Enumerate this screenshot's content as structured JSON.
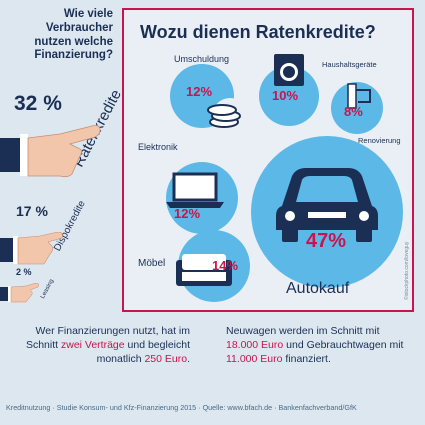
{
  "left": {
    "question": "Wie viele Verbraucher nutzen welche Finanzierung?",
    "rate_pct": "32 %",
    "rate_label": "Ratenkredite",
    "dispo_pct": "17 %",
    "dispo_label": "Dispokredite",
    "leasing_pct": "2 %",
    "leasing_label": "Leasing"
  },
  "panel": {
    "title": "Wozu dienen Ratenkredite?",
    "umschuldung_label": "Umschuldung",
    "umschuldung_pct": "12%",
    "haushalt_label": "Haushaltsgeräte",
    "haushalt_pct": "10%",
    "renovierung_label": "Renovierung",
    "renovierung_pct": "8%",
    "elektronik_label": "Elektronik",
    "elektronik_pct": "12%",
    "moebel_label": "Möbel",
    "moebel_pct": "14%",
    "auto_label": "Autokauf",
    "auto_pct": "47%",
    "credit": "©istockphoto.com/loveguy"
  },
  "bottom": {
    "left_text_1": "Wer Finanzierungen nutzt, hat im Schnitt ",
    "left_hl_1": "zwei Verträge",
    "left_text_2": " und begleicht monatlich ",
    "left_hl_2": "250 Euro",
    "left_text_3": ".",
    "right_text_1": "Neuwagen werden im Schnitt mit ",
    "right_hl_1": "18.000 Euro",
    "right_text_2": " und Gebrauchtwagen mit ",
    "right_hl_2": "11.000 Euro",
    "right_text_3": " finanziert."
  },
  "footer": "Kreditnutzung · Studie Konsum- und Kfz-Finanzierung 2015 · Quelle: www.bfach.de · Bankenfachverband/GfK",
  "colors": {
    "navy": "#1b2f55",
    "accent": "#c8154f",
    "circle": "#5cb8e6",
    "bg": "#dde7ef"
  }
}
